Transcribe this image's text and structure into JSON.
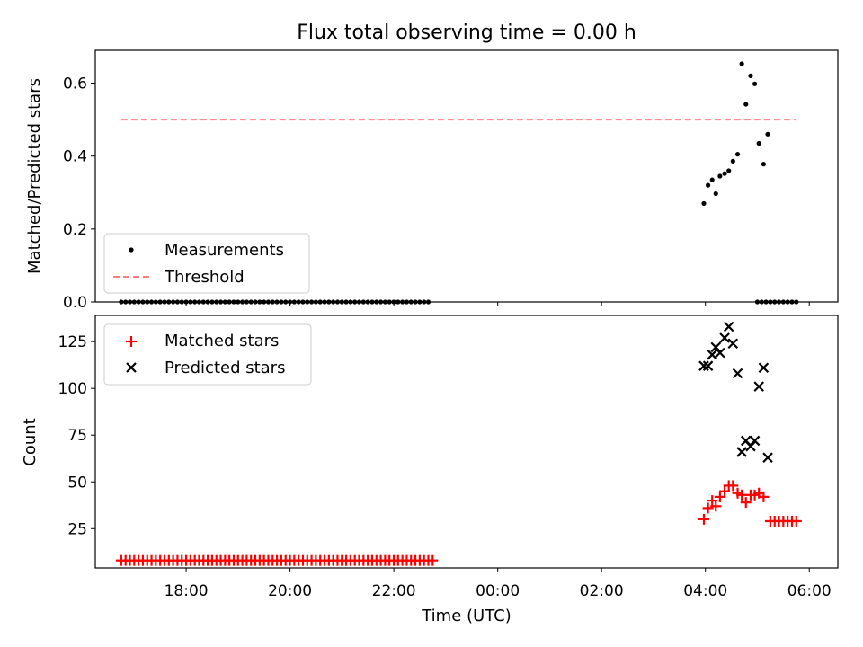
{
  "title": "Flux total observing time = 0.00 h",
  "colors": {
    "measurement": "#000000",
    "threshold": "#ff7f7f",
    "matched": "#ff0000",
    "predicted": "#000000"
  },
  "chart_data": [
    {
      "type": "scatter",
      "ylabel": "Matched/Predicted stars",
      "xlim_hours": [
        16.25,
        30.55
      ],
      "ylim": [
        0,
        0.69
      ],
      "yticks": [
        0.0,
        0.2,
        0.4,
        0.6
      ],
      "ytick_labels": [
        "0.0",
        "0.2",
        "0.4",
        "0.6"
      ],
      "legend": {
        "placement": "lower-left",
        "entries": [
          "Measurements",
          "Threshold"
        ]
      },
      "threshold": {
        "name": "Threshold",
        "value": 0.5,
        "x_start": 16.75,
        "x_end": 29.75
      },
      "series": [
        {
          "name": "Measurements",
          "marker": "dot",
          "zero_run_1": {
            "x_start": 16.75,
            "x_end": 22.67,
            "step": 0.0833,
            "y": 0
          },
          "zero_run_2": {
            "x_start": 29.0,
            "x_end": 29.75,
            "step": 0.0833,
            "y": 0
          },
          "points": [
            [
              27.97,
              0.27
            ],
            [
              28.05,
              0.32
            ],
            [
              28.13,
              0.335
            ],
            [
              28.2,
              0.297
            ],
            [
              28.28,
              0.345
            ],
            [
              28.37,
              0.352
            ],
            [
              28.45,
              0.36
            ],
            [
              28.53,
              0.386
            ],
            [
              28.62,
              0.405
            ],
            [
              28.7,
              0.653
            ],
            [
              28.78,
              0.542
            ],
            [
              28.87,
              0.62
            ],
            [
              28.95,
              0.598
            ],
            [
              29.03,
              0.435
            ],
            [
              29.12,
              0.378
            ],
            [
              29.2,
              0.46
            ]
          ]
        }
      ]
    },
    {
      "type": "scatter",
      "xlabel": "Time (UTC)",
      "ylabel": "Count",
      "xlim_hours": [
        16.25,
        30.55
      ],
      "ylim": [
        4,
        139
      ],
      "yticks": [
        25,
        50,
        75,
        100,
        125
      ],
      "ytick_labels": [
        "25",
        "50",
        "75",
        "100",
        "125"
      ],
      "xticks_hours": [
        18,
        20,
        22,
        24,
        26,
        28,
        30
      ],
      "xtick_labels": [
        "18:00",
        "20:00",
        "22:00",
        "00:00",
        "02:00",
        "04:00",
        "06:00"
      ],
      "legend": {
        "placement": "upper-left",
        "entries": [
          "Matched stars",
          "Predicted stars"
        ]
      },
      "series": [
        {
          "name": "Matched stars",
          "marker": "plus",
          "constant_run_1": {
            "x_start": 16.75,
            "x_end": 22.75,
            "step": 0.0833,
            "y": 8
          },
          "constant_run_2": {
            "x_start": 29.25,
            "x_end": 29.75,
            "step": 0.0833,
            "y": 29
          },
          "points": [
            [
              27.97,
              30
            ],
            [
              28.05,
              36
            ],
            [
              28.13,
              40
            ],
            [
              28.2,
              37
            ],
            [
              28.28,
              42
            ],
            [
              28.37,
              45
            ],
            [
              28.45,
              48
            ],
            [
              28.53,
              48
            ],
            [
              28.62,
              44
            ],
            [
              28.7,
              43
            ],
            [
              28.78,
              39
            ],
            [
              28.87,
              43
            ],
            [
              28.95,
              43
            ],
            [
              29.03,
              44
            ],
            [
              29.12,
              42
            ]
          ]
        },
        {
          "name": "Predicted stars",
          "marker": "x",
          "points": [
            [
              27.97,
              112
            ],
            [
              28.05,
              112
            ],
            [
              28.13,
              118
            ],
            [
              28.2,
              122
            ],
            [
              28.28,
              119
            ],
            [
              28.37,
              127
            ],
            [
              28.45,
              133
            ],
            [
              28.53,
              124
            ],
            [
              28.62,
              108
            ],
            [
              28.7,
              66
            ],
            [
              28.78,
              72
            ],
            [
              28.87,
              69
            ],
            [
              28.95,
              72
            ],
            [
              29.03,
              101
            ],
            [
              29.12,
              111
            ],
            [
              29.2,
              63
            ]
          ]
        }
      ]
    }
  ]
}
